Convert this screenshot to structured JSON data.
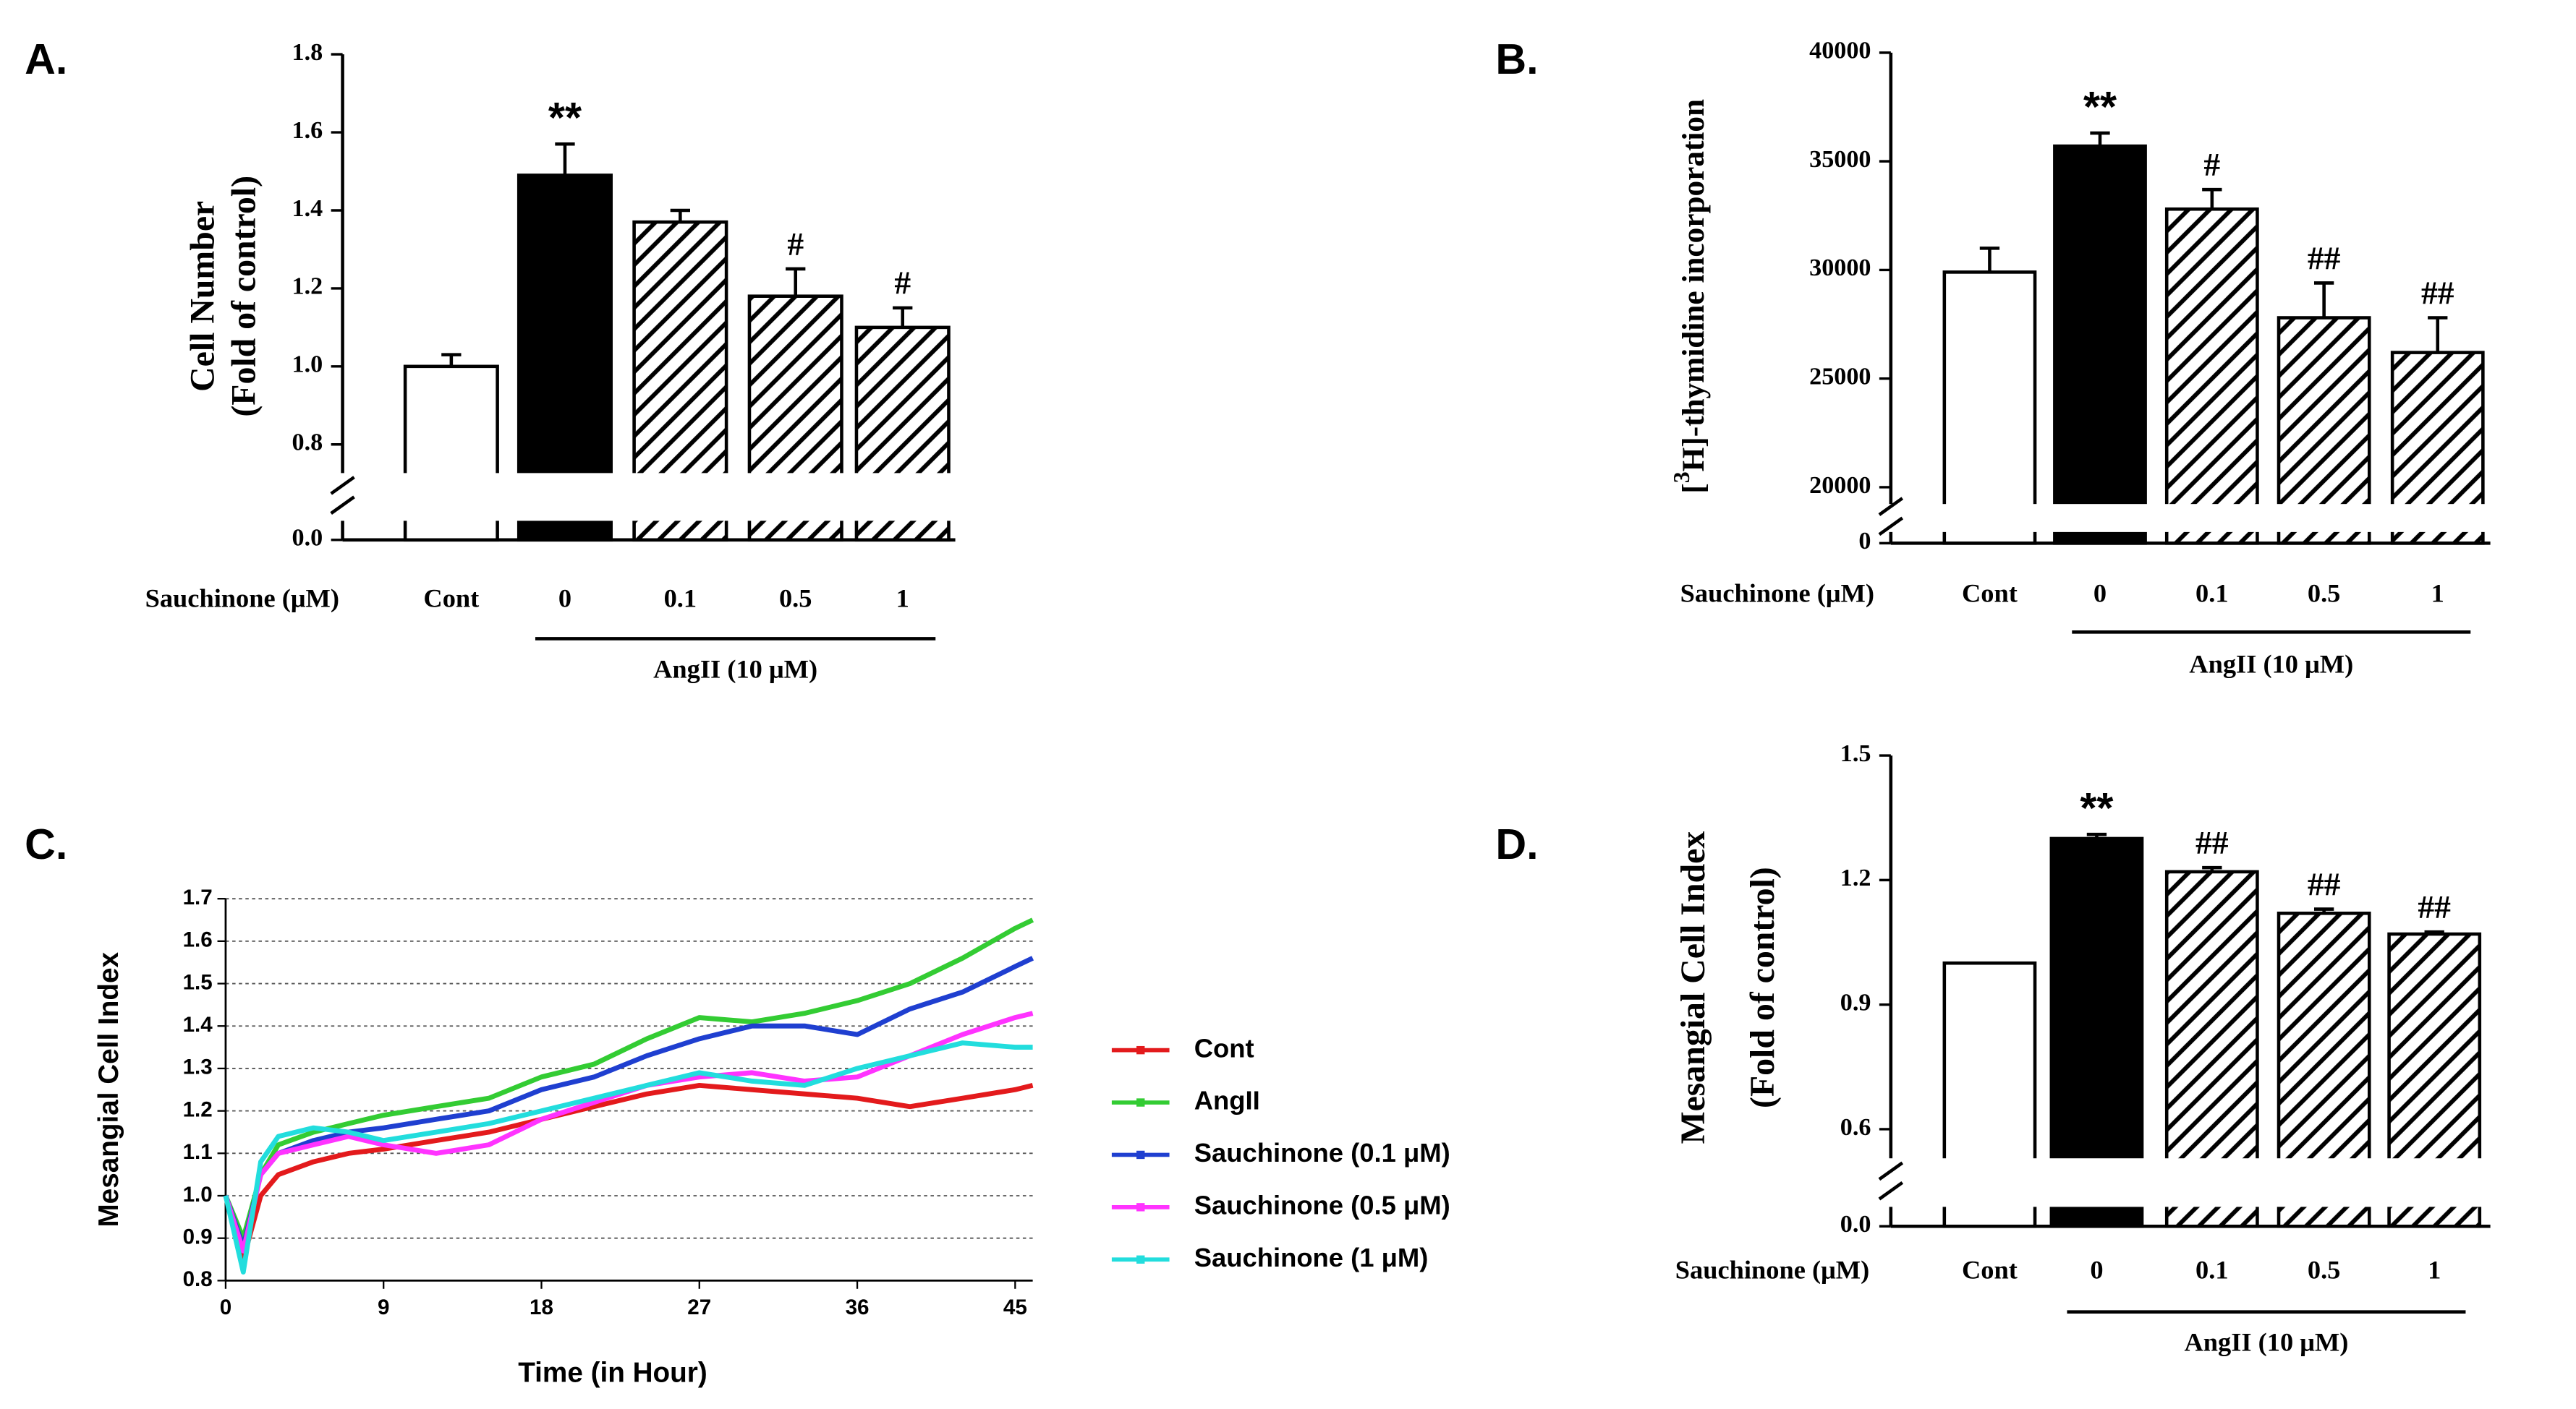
{
  "chart_data": [
    {
      "type": "bar",
      "title": "A.",
      "ylabel": [
        "Cell Number",
        "(Fold of control)"
      ],
      "xlabel": "Sauchinone (μM)",
      "categories": [
        "Cont",
        "0",
        "0.1",
        "0.5",
        "1"
      ],
      "group_label": "AngII (10 μM)",
      "values": [
        1.0,
        1.49,
        1.37,
        1.18,
        1.1
      ],
      "errors": [
        0.03,
        0.08,
        0.03,
        0.07,
        0.05
      ],
      "annotations": [
        null,
        "**",
        null,
        "#",
        "#"
      ],
      "fills": [
        "white",
        "black",
        "hatch",
        "hatch",
        "hatch"
      ],
      "ylim": [
        0,
        1.8
      ],
      "yticks": [
        {
          "value": 0,
          "label": "0.0"
        },
        0.8,
        {
          "value": 1,
          "label": "1.0"
        },
        1.2,
        1.4,
        1.6,
        1.8
      ]
    },
    {
      "type": "bar",
      "title": "B.",
      "ylabel_rich": [
        "[",
        "3",
        "H]-thymidine incorporation"
      ],
      "xlabel": "Sauchinone (μM)",
      "categories": [
        "Cont",
        "0",
        "0.1",
        "0.5",
        "1"
      ],
      "group_label": "AngII (10 μM)",
      "values": [
        29900,
        35700,
        32800,
        27800,
        26200
      ],
      "errors": [
        1100,
        600,
        900,
        1600,
        1600
      ],
      "annotations": [
        null,
        "**",
        "#",
        "##",
        "##"
      ],
      "fills": [
        "white",
        "black",
        "hatch",
        "hatch",
        "hatch"
      ],
      "ylim": [
        0,
        40000
      ],
      "yticks": [
        0,
        20000,
        25000,
        30000,
        35000,
        40000
      ]
    },
    {
      "type": "line",
      "title": "C.",
      "ylabel": "Mesangial Cell Index",
      "xlabel": "Time (in Hour)",
      "x": [
        0,
        1,
        2,
        3,
        5,
        7,
        9,
        12,
        15,
        18,
        21,
        24,
        27,
        30,
        33,
        36,
        39,
        42,
        45,
        46
      ],
      "series": [
        {
          "name": "Cont",
          "color": "#e31a1c",
          "values": [
            1.0,
            0.85,
            1.0,
            1.05,
            1.08,
            1.1,
            1.11,
            1.13,
            1.15,
            1.18,
            1.21,
            1.24,
            1.26,
            1.25,
            1.24,
            1.23,
            1.21,
            1.23,
            1.25,
            1.26
          ]
        },
        {
          "name": "AngII",
          "color": "#33cc33",
          "values": [
            1.0,
            0.9,
            1.05,
            1.12,
            1.15,
            1.17,
            1.19,
            1.21,
            1.23,
            1.28,
            1.31,
            1.37,
            1.42,
            1.41,
            1.43,
            1.46,
            1.5,
            1.56,
            1.63,
            1.65
          ]
        },
        {
          "name": "Sauchinone (0.1 μM)",
          "color": "#1f3fd0",
          "values": [
            1.0,
            0.88,
            1.05,
            1.1,
            1.13,
            1.15,
            1.16,
            1.18,
            1.2,
            1.25,
            1.28,
            1.33,
            1.37,
            1.4,
            1.4,
            1.38,
            1.44,
            1.48,
            1.54,
            1.56
          ]
        },
        {
          "name": "Sauchinone (0.5 μM)",
          "color": "#ff33ff",
          "values": [
            1.0,
            0.87,
            1.05,
            1.1,
            1.12,
            1.14,
            1.12,
            1.1,
            1.12,
            1.18,
            1.22,
            1.26,
            1.28,
            1.29,
            1.27,
            1.28,
            1.33,
            1.38,
            1.42,
            1.43
          ]
        },
        {
          "name": "Sauchinone (1 μM)",
          "color": "#22dddd",
          "values": [
            1.0,
            0.82,
            1.08,
            1.14,
            1.16,
            1.15,
            1.13,
            1.15,
            1.17,
            1.2,
            1.23,
            1.26,
            1.29,
            1.27,
            1.26,
            1.3,
            1.33,
            1.36,
            1.35,
            1.35
          ]
        }
      ],
      "xlim": [
        0,
        46
      ],
      "xticks": [
        0,
        9,
        18,
        27,
        36,
        45
      ],
      "ylim": [
        0.8,
        1.7
      ],
      "yticks": [
        0.8,
        0.9,
        {
          "value": 1,
          "label": "1.0"
        },
        1.1,
        1.2,
        1.3,
        1.4,
        1.5,
        1.6,
        1.7
      ],
      "grid": true,
      "legend": "right"
    },
    {
      "type": "bar",
      "title": "D.",
      "ylabel": [
        "Mesangial Cell Index",
        "(Fold of control)"
      ],
      "xlabel": "Sauchinone (μM)",
      "categories": [
        "Cont",
        "0",
        "0.1",
        "0.5",
        "1"
      ],
      "group_label": "AngII (10 μM)",
      "values": [
        1.0,
        1.3,
        1.22,
        1.12,
        1.07
      ],
      "errors": [
        0,
        0.01,
        0.01,
        0.01,
        0.005
      ],
      "annotations": [
        null,
        "**",
        "##",
        "##",
        "##"
      ],
      "fills": [
        "white",
        "black",
        "hatch",
        "hatch",
        "hatch"
      ],
      "ylim": [
        0,
        1.5
      ],
      "yticks": [
        {
          "value": 0,
          "label": "0.0"
        },
        0.6,
        0.9,
        1.2,
        1.5
      ]
    }
  ]
}
